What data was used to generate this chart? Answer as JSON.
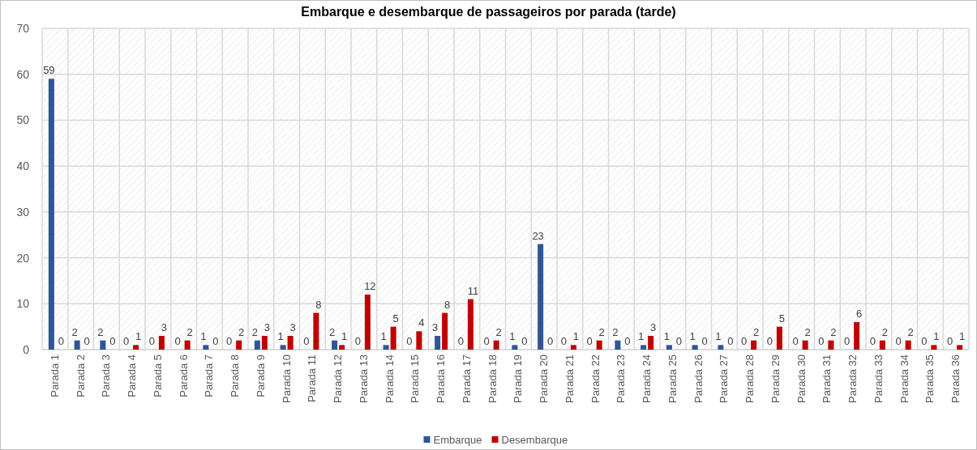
{
  "chart_data": {
    "type": "bar",
    "title": "Embarque e desembarque de passageiros por parada (tarde)",
    "categories": [
      "Parada 1",
      "Parada 2",
      "Parada 3",
      "Parada 4",
      "Parada 5",
      "Parada 6",
      "Parada 7",
      "Parada 8",
      "Parada 9",
      "Parada 10",
      "Parada 11",
      "Parada 12",
      "Parada 13",
      "Parada 14",
      "Parada 15",
      "Parada 16",
      "Parada 17",
      "Parada 18",
      "Parada 19",
      "Parada 20",
      "Parada 21",
      "Parada 22",
      "Parada 23",
      "Parada 24",
      "Parada 25",
      "Parada 26",
      "Parada 27",
      "Parada 28",
      "Parada 29",
      "Parada 30",
      "Parada 31",
      "Parada 32",
      "Parada 33",
      "Parada 34",
      "Parada 35",
      "Parada 36"
    ],
    "series": [
      {
        "name": "Embarque",
        "color": "#2f5597",
        "values": [
          59,
          2,
          2,
          0,
          0,
          0,
          1,
          0,
          2,
          1,
          0,
          2,
          0,
          1,
          0,
          3,
          0,
          0,
          1,
          23,
          0,
          0,
          2,
          1,
          1,
          1,
          1,
          0,
          0,
          0,
          0,
          0,
          0,
          0,
          0,
          0
        ]
      },
      {
        "name": "Desembarque",
        "color": "#c00000",
        "values": [
          0,
          0,
          0,
          1,
          3,
          2,
          0,
          2,
          3,
          3,
          8,
          1,
          12,
          5,
          4,
          8,
          11,
          2,
          0,
          0,
          1,
          2,
          0,
          3,
          0,
          0,
          0,
          2,
          5,
          2,
          2,
          6,
          2,
          2,
          1,
          1
        ]
      }
    ],
    "ylim": [
      0,
      70
    ],
    "yticks": [
      0,
      10,
      20,
      30,
      40,
      50,
      60,
      70
    ],
    "grid": true,
    "legend": "bottom",
    "data_labels": true
  }
}
